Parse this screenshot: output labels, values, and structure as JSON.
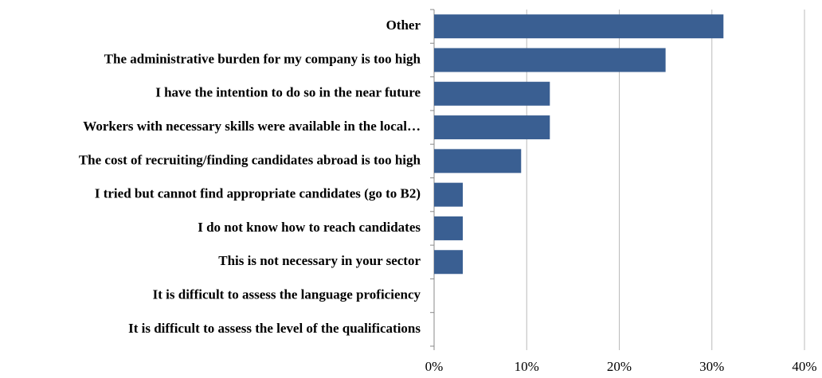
{
  "chart_data": {
    "type": "barh",
    "categories": [
      "Other",
      "The administrative burden for my company is too high",
      "I have the intention to do so in the near future",
      "Workers with necessary skills were available in the local…",
      "The cost of recruiting/finding candidates abroad is too high",
      "I tried but cannot find appropriate candidates (go to B2)",
      "I do not know how to reach candidates",
      "This is not necessary in your sector",
      "It is difficult to assess the language proficiency",
      "It is difficult to assess the level of the qualifications"
    ],
    "values": [
      31.25,
      25,
      12.5,
      12.5,
      9.4,
      3.1,
      3.1,
      3.1,
      0,
      0
    ],
    "color": "#3a5f92",
    "xlim": [
      0,
      40
    ],
    "xticks": [
      {
        "value": 0,
        "label": "0%"
      },
      {
        "value": 10,
        "label": "10%"
      },
      {
        "value": 20,
        "label": "20%"
      },
      {
        "value": 30,
        "label": "30%"
      },
      {
        "value": 40,
        "label": "40%"
      }
    ],
    "grid": true
  }
}
